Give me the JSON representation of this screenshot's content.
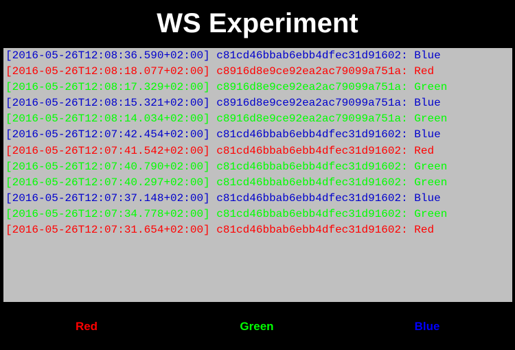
{
  "app": {
    "title": "WS Experiment"
  },
  "log": {
    "entries": [
      {
        "text": "[2016-05-26T12:08:36.590+02:00] c81cd46bbab6ebb4dfec31d91602: Blue",
        "color": "#0000cc"
      },
      {
        "text": "[2016-05-26T12:08:18.077+02:00] c8916d8e9ce92ea2ac79099a751a: Red",
        "color": "#ff0000"
      },
      {
        "text": "[2016-05-26T12:08:17.329+02:00] c8916d8e9ce92ea2ac79099a751a: Green",
        "color": "#00ff00"
      },
      {
        "text": "[2016-05-26T12:08:15.321+02:00] c8916d8e9ce92ea2ac79099a751a: Blue",
        "color": "#0000cc"
      },
      {
        "text": "[2016-05-26T12:08:14.034+02:00] c8916d8e9ce92ea2ac79099a751a: Green",
        "color": "#00ff00"
      },
      {
        "text": "[2016-05-26T12:07:42.454+02:00] c81cd46bbab6ebb4dfec31d91602: Blue",
        "color": "#0000cc"
      },
      {
        "text": "[2016-05-26T12:07:41.542+02:00] c81cd46bbab6ebb4dfec31d91602: Red",
        "color": "#ff0000"
      },
      {
        "text": "[2016-05-26T12:07:40.790+02:00] c81cd46bbab6ebb4dfec31d91602: Green",
        "color": "#00ff00"
      },
      {
        "text": "[2016-05-26T12:07:40.297+02:00] c81cd46bbab6ebb4dfec31d91602: Green",
        "color": "#00ff00"
      },
      {
        "text": "[2016-05-26T12:07:37.148+02:00] c81cd46bbab6ebb4dfec31d91602: Blue",
        "color": "#0000cc"
      },
      {
        "text": "[2016-05-26T12:07:34.778+02:00] c81cd46bbab6ebb4dfec31d91602: Green",
        "color": "#00ff00"
      },
      {
        "text": "[2016-05-26T12:07:31.654+02:00] c81cd46bbab6ebb4dfec31d91602: Red",
        "color": "#ff0000"
      }
    ]
  },
  "buttons": {
    "red_label": "Red",
    "green_label": "Green",
    "blue_label": "Blue"
  },
  "colors": {
    "background": "#000000",
    "panel": "#c0c0c0",
    "red": "#ff0000",
    "green": "#00ff00",
    "blue": "#0000ff"
  }
}
